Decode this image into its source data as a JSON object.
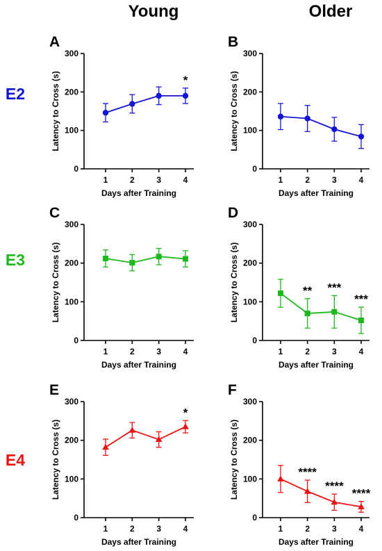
{
  "columns": [
    "Young",
    "Older"
  ],
  "rows": [
    {
      "label": "E2",
      "color": "#1414d6"
    },
    {
      "label": "E3",
      "color": "#1cb81c"
    },
    {
      "label": "E4",
      "color": "#ee1111"
    }
  ],
  "chart_data": [
    {
      "panel": "A",
      "type": "line",
      "group": "Young",
      "genotype": "E2",
      "marker": "circle",
      "x": [
        1,
        2,
        3,
        4
      ],
      "y": [
        146,
        169,
        190,
        190
      ],
      "error": [
        24,
        24,
        23,
        20
      ],
      "significance": [
        "",
        "",
        "",
        "*"
      ],
      "xlabel": "Days after Training",
      "ylabel": "Latency to Cross (s)",
      "xticks": [
        1,
        2,
        3,
        4
      ],
      "yticks": [
        0,
        100,
        200,
        300
      ],
      "ylim": [
        0,
        300
      ]
    },
    {
      "panel": "B",
      "type": "line",
      "group": "Older",
      "genotype": "E2",
      "marker": "circle",
      "x": [
        1,
        2,
        3,
        4
      ],
      "y": [
        136,
        131,
        103,
        84
      ],
      "error": [
        34,
        34,
        31,
        31
      ],
      "significance": [
        "",
        "",
        "",
        ""
      ],
      "xlabel": "Days after Training",
      "ylabel": "Latency to Cross (s)",
      "xticks": [
        1,
        2,
        3,
        4
      ],
      "yticks": [
        0,
        100,
        200,
        300
      ],
      "ylim": [
        0,
        300
      ]
    },
    {
      "panel": "C",
      "type": "line",
      "group": "Young",
      "genotype": "E3",
      "marker": "square",
      "x": [
        1,
        2,
        3,
        4
      ],
      "y": [
        212,
        201,
        217,
        211
      ],
      "error": [
        22,
        21,
        21,
        21
      ],
      "significance": [
        "",
        "",
        "",
        ""
      ],
      "xlabel": "Days after Training",
      "ylabel": "Latency to Cross (s)",
      "xticks": [
        1,
        2,
        3,
        4
      ],
      "yticks": [
        0,
        100,
        200,
        300
      ],
      "ylim": [
        0,
        300
      ]
    },
    {
      "panel": "D",
      "type": "line",
      "group": "Older",
      "genotype": "E3",
      "marker": "square",
      "x": [
        1,
        2,
        3,
        4
      ],
      "y": [
        122,
        70,
        74,
        52
      ],
      "error": [
        36,
        38,
        42,
        34
      ],
      "significance": [
        "",
        "**",
        "***",
        "***"
      ],
      "xlabel": "Days after Training",
      "ylabel": "Latency to Cross (s)",
      "xticks": [
        1,
        2,
        3,
        4
      ],
      "yticks": [
        0,
        100,
        200,
        300
      ],
      "ylim": [
        0,
        300
      ]
    },
    {
      "panel": "E",
      "type": "line",
      "group": "Young",
      "genotype": "E4",
      "marker": "triangle",
      "x": [
        1,
        2,
        3,
        4
      ],
      "y": [
        182,
        226,
        202,
        235
      ],
      "error": [
        21,
        20,
        20,
        16
      ],
      "significance": [
        "",
        "",
        "",
        "*"
      ],
      "xlabel": "Days after Training",
      "ylabel": "Latency to Cross (s)",
      "xticks": [
        1,
        2,
        3,
        4
      ],
      "yticks": [
        0,
        100,
        200,
        300
      ],
      "ylim": [
        0,
        300
      ]
    },
    {
      "panel": "F",
      "type": "line",
      "group": "Older",
      "genotype": "E4",
      "marker": "triangle",
      "x": [
        1,
        2,
        3,
        4
      ],
      "y": [
        100,
        68,
        40,
        28
      ],
      "error": [
        35,
        29,
        21,
        14
      ],
      "significance": [
        "",
        "****",
        "****",
        "****"
      ],
      "xlabel": "Days after Training",
      "ylabel": "Latency to Cross (s)",
      "xticks": [
        1,
        2,
        3,
        4
      ],
      "yticks": [
        0,
        100,
        200,
        300
      ],
      "ylim": [
        0,
        300
      ]
    }
  ]
}
